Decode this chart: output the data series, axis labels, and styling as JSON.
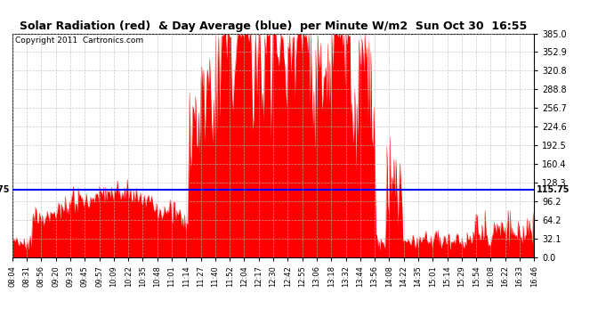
{
  "title": "Solar Radiation (red)  & Day Average (blue)  per Minute W/m2  Sun Oct 30  16:55",
  "copyright": "Copyright 2011  Cartronics.com",
  "ymin": 0.0,
  "ymax": 385.0,
  "yticks": [
    0.0,
    32.1,
    64.2,
    96.2,
    128.3,
    160.4,
    192.5,
    224.6,
    256.7,
    288.8,
    320.8,
    352.9,
    385.0
  ],
  "day_average": 115.75,
  "fill_color": "#FF0000",
  "avg_line_color": "#0000FF",
  "bg_color": "#FFFFFF",
  "title_fontsize": 11,
  "copyright_fontsize": 7,
  "xtick_labels": [
    "08:04",
    "08:31",
    "08:56",
    "09:20",
    "09:33",
    "09:45",
    "09:57",
    "10:09",
    "10:22",
    "10:35",
    "10:48",
    "11:01",
    "11:14",
    "11:27",
    "11:40",
    "11:52",
    "12:04",
    "12:17",
    "12:30",
    "12:42",
    "12:55",
    "13:06",
    "13:18",
    "13:32",
    "13:44",
    "13:56",
    "14:08",
    "14:22",
    "14:35",
    "15:01",
    "15:14",
    "15:29",
    "15:54",
    "16:08",
    "16:22",
    "16:33",
    "16:46"
  ]
}
